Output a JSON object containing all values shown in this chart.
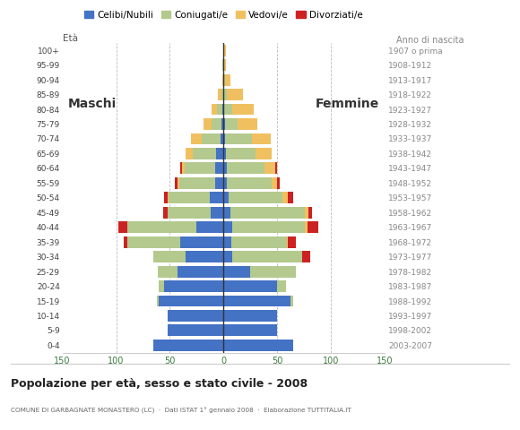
{
  "age_groups": [
    "0-4",
    "5-9",
    "10-14",
    "15-19",
    "20-24",
    "25-29",
    "30-34",
    "35-39",
    "40-44",
    "45-49",
    "50-54",
    "55-59",
    "60-64",
    "65-69",
    "70-74",
    "75-79",
    "80-84",
    "85-89",
    "90-94",
    "95-99",
    "100+"
  ],
  "birth_years": [
    "2003-2007",
    "1998-2002",
    "1993-1997",
    "1988-1992",
    "1983-1987",
    "1978-1982",
    "1973-1977",
    "1968-1972",
    "1963-1967",
    "1958-1962",
    "1953-1957",
    "1948-1952",
    "1943-1947",
    "1938-1942",
    "1933-1937",
    "1928-1932",
    "1923-1927",
    "1918-1922",
    "1913-1917",
    "1908-1912",
    "1907 o prima"
  ],
  "colors": {
    "celibe": "#4472c4",
    "coniugato": "#b3c98d",
    "vedovo": "#f0c060",
    "divorziato": "#cc2222"
  },
  "males": {
    "celibe": [
      65,
      52,
      52,
      60,
      55,
      43,
      35,
      40,
      25,
      12,
      13,
      8,
      8,
      7,
      3,
      2,
      1,
      0,
      0,
      0,
      0
    ],
    "coniugato": [
      0,
      0,
      0,
      2,
      5,
      18,
      30,
      50,
      65,
      40,
      38,
      33,
      28,
      22,
      17,
      9,
      5,
      2,
      0,
      1,
      0
    ],
    "vedovo": [
      0,
      0,
      0,
      0,
      0,
      0,
      0,
      0,
      0,
      0,
      1,
      2,
      3,
      6,
      10,
      8,
      5,
      3,
      1,
      0,
      0
    ],
    "divorziato": [
      0,
      0,
      0,
      0,
      0,
      0,
      0,
      3,
      8,
      4,
      3,
      2,
      1,
      0,
      0,
      0,
      0,
      0,
      0,
      0,
      0
    ]
  },
  "females": {
    "celibe": [
      65,
      50,
      50,
      62,
      50,
      25,
      8,
      7,
      8,
      6,
      5,
      3,
      3,
      2,
      1,
      1,
      0,
      0,
      0,
      0,
      0
    ],
    "coniugato": [
      0,
      0,
      0,
      3,
      8,
      42,
      65,
      52,
      68,
      70,
      50,
      42,
      35,
      28,
      25,
      12,
      8,
      3,
      1,
      0,
      0
    ],
    "vedovo": [
      0,
      0,
      0,
      0,
      0,
      0,
      0,
      1,
      2,
      3,
      5,
      5,
      10,
      15,
      18,
      18,
      20,
      15,
      5,
      2,
      2
    ],
    "divorziato": [
      0,
      0,
      0,
      0,
      0,
      0,
      8,
      7,
      10,
      3,
      5,
      2,
      2,
      0,
      0,
      0,
      0,
      0,
      0,
      0,
      0
    ]
  },
  "title": "Popolazione per età, sesso e stato civile - 2008",
  "subtitle": "COMUNE DI GARBAGNATE MONASTERO (LC)  ·  Dati ISTAT 1° gennaio 2008  ·  Elaborazione TUTTITALIA.IT",
  "maschi_label": "Maschi",
  "femmine_label": "Femmine",
  "eta_label": "Età",
  "anno_label": "Anno di nascita",
  "legend_labels": [
    "Celibi/Nubili",
    "Coniugati/e",
    "Vedovi/e",
    "Divorziati/e"
  ],
  "xlim": 150,
  "xticks": [
    -150,
    -100,
    -50,
    0,
    50,
    100,
    150
  ],
  "background_color": "#ffffff",
  "grid_color": "#aaaaaa",
  "tick_color": "#3a7a3a",
  "label_color": "#555555"
}
